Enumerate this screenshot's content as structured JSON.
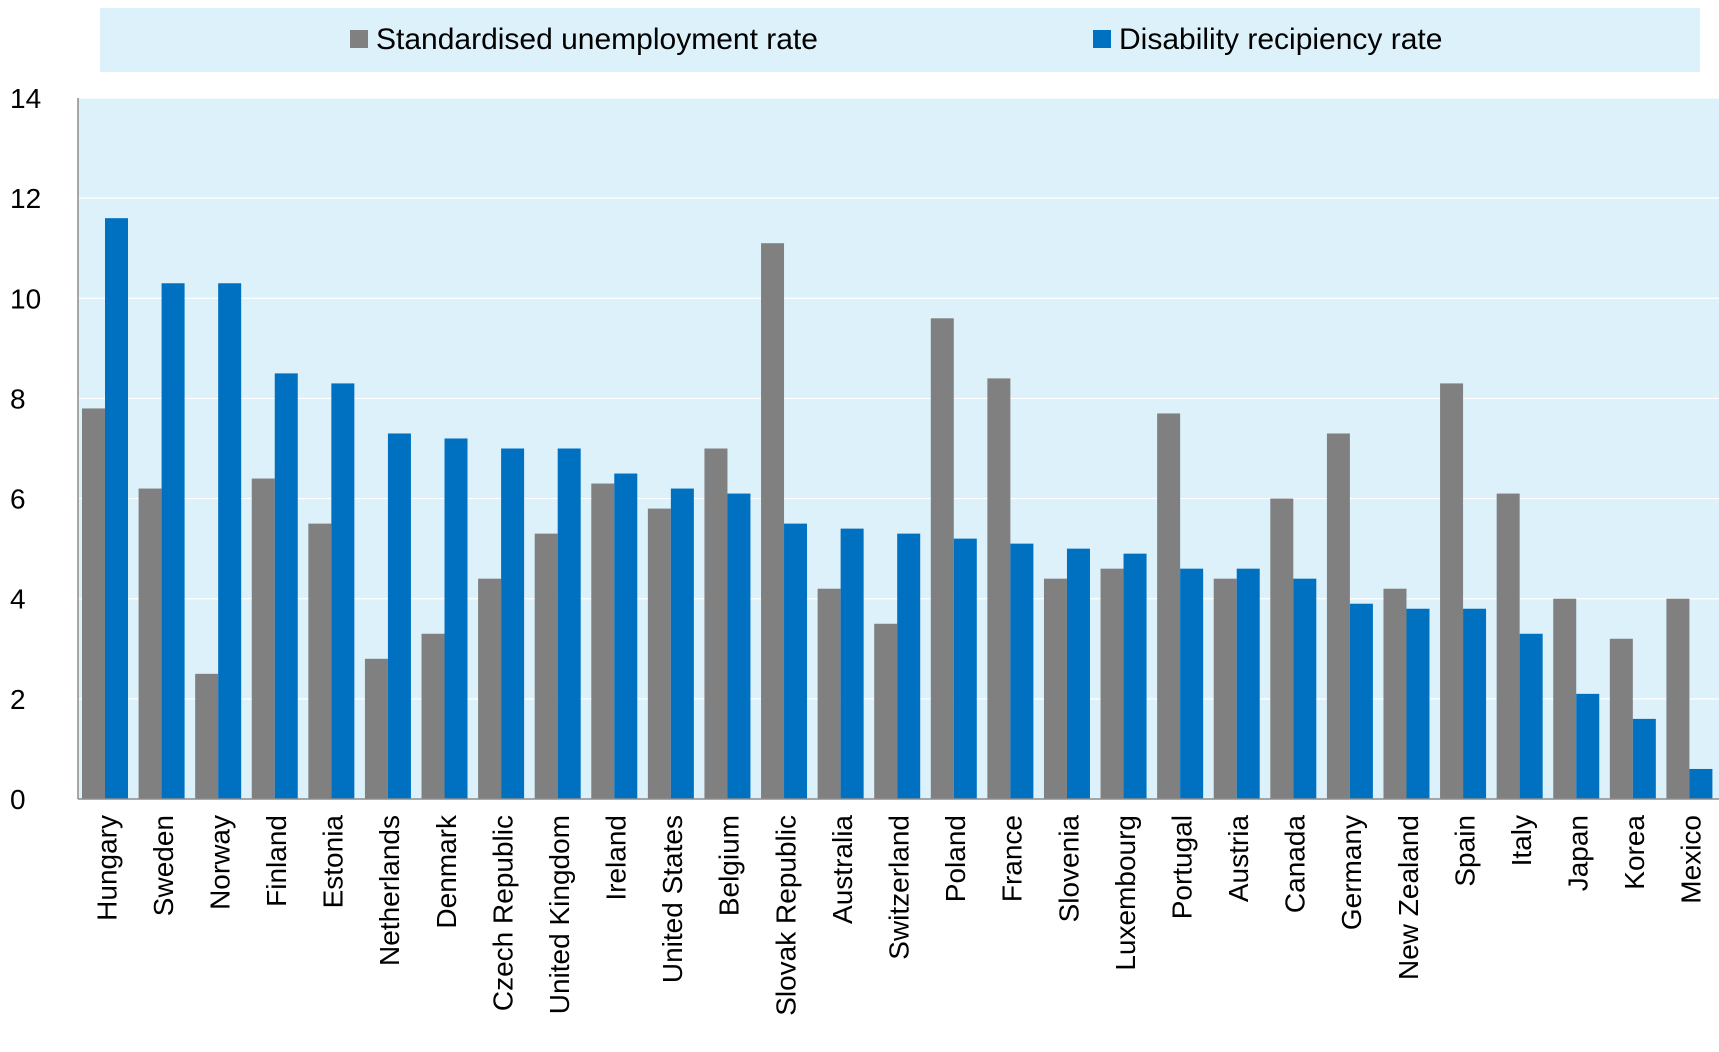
{
  "chart_data": {
    "type": "bar",
    "title": "",
    "xlabel": "",
    "ylabel": "",
    "ylim": [
      0,
      14
    ],
    "yticks": [
      0,
      2,
      4,
      6,
      8,
      10,
      12,
      14
    ],
    "grid": true,
    "legend_position": "top",
    "categories": [
      "Hungary",
      "Sweden",
      "Norway",
      "Finland",
      "Estonia",
      "Netherlands",
      "Denmark",
      "Czech Republic",
      "United Kingdom",
      "Ireland",
      "United States",
      "Belgium",
      "Slovak Republic",
      "Australia",
      "Switzerland",
      "Poland",
      "France",
      "Slovenia",
      "Luxembourg",
      "Portugal",
      "Austria",
      "Canada",
      "Germany",
      "New Zealand",
      "Spain",
      "Italy",
      "Japan",
      "Korea",
      "Mexico"
    ],
    "series": [
      {
        "name": "Standardised unemployment rate",
        "color": "#808080",
        "values": [
          7.8,
          6.2,
          2.5,
          6.4,
          5.5,
          2.8,
          3.3,
          4.4,
          5.3,
          6.3,
          5.8,
          7.0,
          11.1,
          4.2,
          3.5,
          9.6,
          8.4,
          4.4,
          4.6,
          7.7,
          4.4,
          6.0,
          7.3,
          4.2,
          8.3,
          6.1,
          4.0,
          3.2,
          4.0
        ]
      },
      {
        "name": "Disability recipiency rate",
        "color": "#0070C0",
        "values": [
          11.6,
          10.3,
          10.3,
          8.5,
          8.3,
          7.3,
          7.2,
          7.0,
          7.0,
          6.5,
          6.2,
          6.1,
          5.5,
          5.4,
          5.3,
          5.2,
          5.1,
          5.0,
          4.9,
          4.6,
          4.6,
          4.4,
          3.9,
          3.8,
          3.8,
          3.3,
          2.1,
          1.6,
          0.6
        ]
      }
    ]
  },
  "colors": {
    "plot_background": "#DDF1FB",
    "legend_background": "#DDF1FB",
    "gridline": "#FFFFFF",
    "axis": "#8C8C8C"
  }
}
